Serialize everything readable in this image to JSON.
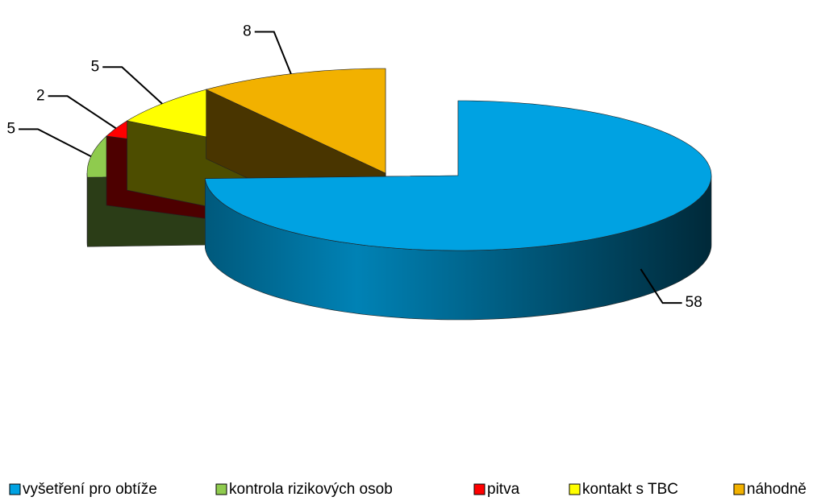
{
  "chart_data": {
    "type": "pie3d",
    "categories": [
      "vyšetření pro obtíže",
      "kontrola rizikových osob",
      "pitva",
      "kontakt s TBC",
      "náhodně"
    ],
    "values": [
      58,
      5,
      2,
      5,
      8
    ],
    "colors": [
      "#00a2e2",
      "#8fcb4e",
      "#ff0000",
      "#ffff00",
      "#f2b100"
    ],
    "legend": "bottom"
  }
}
